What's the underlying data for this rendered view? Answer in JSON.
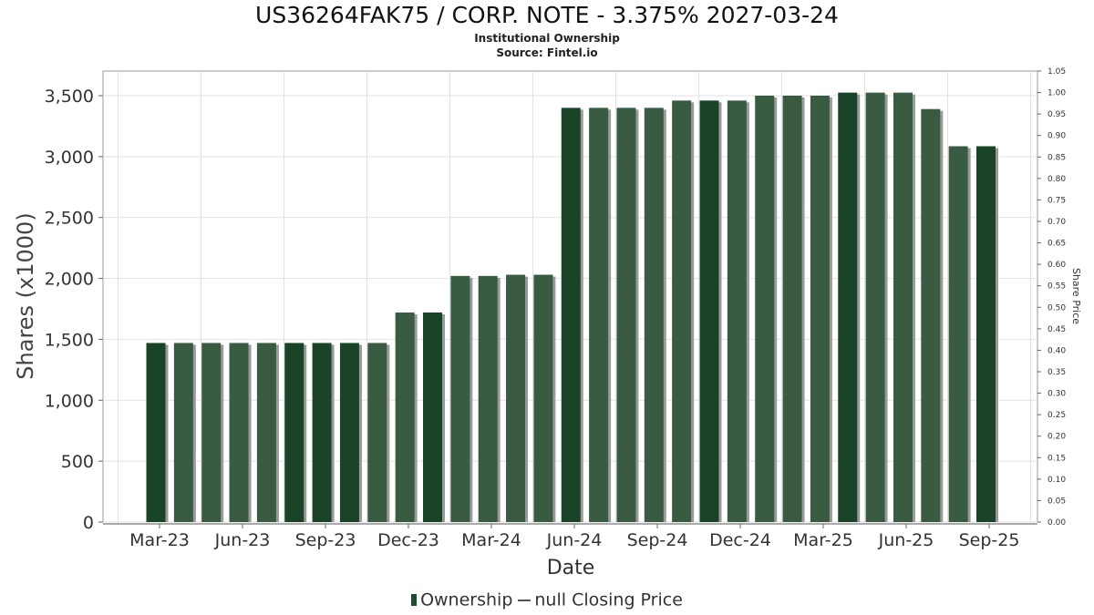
{
  "chart_data": {
    "type": "bar",
    "title": "US36264FAK75 / CORP. NOTE - 3.375% 2027-03-24",
    "subtitle": "Institutional Ownership",
    "source": "Source: Fintel.io",
    "xlabel": "Date",
    "ylabel": "Shares (x1000)",
    "y2label": "Share Price",
    "ylim": [
      0,
      3700
    ],
    "y_ticks": [
      "0",
      "500",
      "1,000",
      "1,500",
      "2,000",
      "2,500",
      "3,000",
      "3,500"
    ],
    "y2lim": [
      0,
      1.05
    ],
    "y2_ticks": [
      "0.00",
      "0.05",
      "0.10",
      "0.15",
      "0.20",
      "0.25",
      "0.30",
      "0.35",
      "0.40",
      "0.45",
      "0.50",
      "0.55",
      "0.60",
      "0.65",
      "0.70",
      "0.75",
      "0.80",
      "0.85",
      "0.90",
      "0.95",
      "1.00",
      "1.05"
    ],
    "x_ticks": [
      "Mar-23",
      "Jun-23",
      "Sep-23",
      "Dec-23",
      "Mar-24",
      "Jun-24",
      "Sep-24",
      "Dec-24",
      "Mar-25",
      "Jun-25",
      "Sep-25"
    ],
    "grid": true,
    "legend_position": "bottom",
    "colors": {
      "bar_dark": "#1a4428",
      "bar_light": "#385b42",
      "shadow": "#9a9a9a",
      "grid": "#e2e2e2"
    },
    "series": [
      {
        "name": "Ownership",
        "values": [
          1470,
          1470,
          1470,
          1470,
          1470,
          1470,
          1470,
          1470,
          1470,
          1720,
          1720,
          2020,
          2020,
          2030,
          2030,
          3400,
          3400,
          3400,
          3400,
          3460,
          3460,
          3460,
          3500,
          3500,
          3500,
          3525,
          3525,
          3525,
          3390,
          3085,
          3085
        ]
      }
    ]
  },
  "legend": {
    "ownership_label": "Ownership",
    "price_label": "null Closing Price"
  }
}
